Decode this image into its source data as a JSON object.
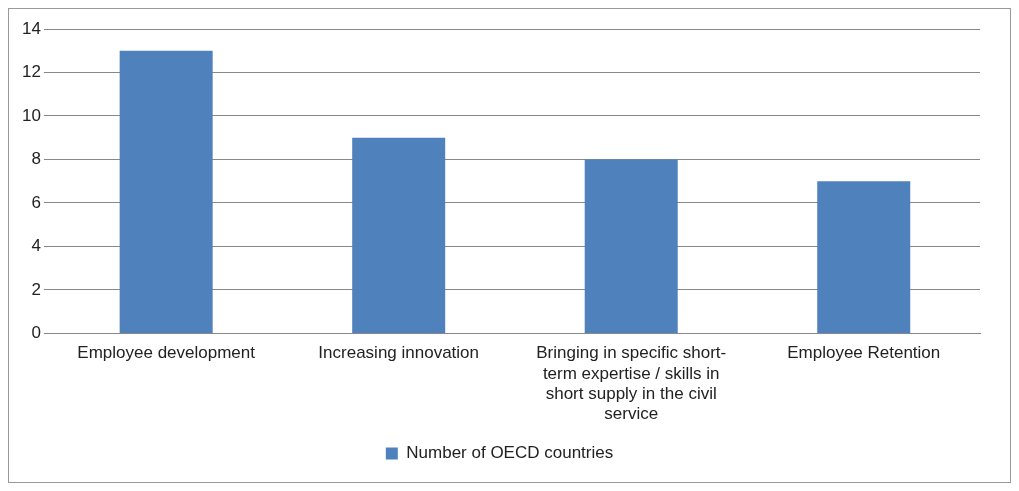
{
  "chart_data": {
    "type": "bar",
    "categories": [
      "Employee development",
      "Increasing innovation",
      "Bringing in specific short-term expertise / skills in short supply in the civil service",
      "Employee Retention"
    ],
    "series": [
      {
        "name": "Number of OECD countries",
        "color": "#4f81bd",
        "values": [
          13,
          9,
          8,
          7
        ]
      }
    ],
    "ylim": [
      0,
      14
    ],
    "yticks": [
      0,
      2,
      4,
      6,
      8,
      10,
      12,
      14
    ],
    "grid": "y",
    "legend": "bottom"
  }
}
